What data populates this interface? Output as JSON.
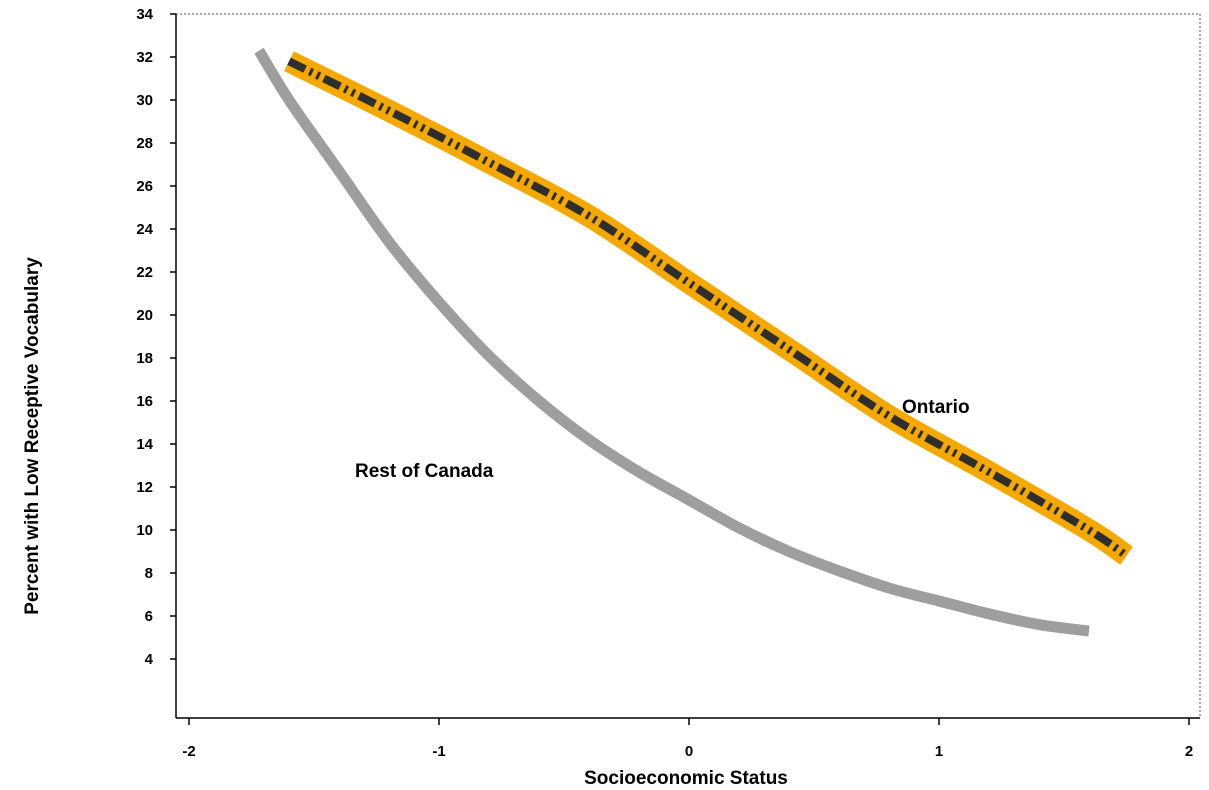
{
  "chart_data": {
    "type": "line",
    "xlabel": "Socioeconomic Status",
    "ylabel": "Percent with Low Receptive Vocabulary",
    "xlim": [
      -2,
      2
    ],
    "ylim": [
      2,
      34
    ],
    "x_ticks": [
      -2,
      -1,
      0,
      1,
      2
    ],
    "x_tick_labels": [
      "-2",
      "-1",
      "0",
      "1",
      "2"
    ],
    "y_ticks": [
      4,
      6,
      8,
      10,
      12,
      14,
      16,
      18,
      20,
      22,
      24,
      26,
      28,
      30,
      32,
      34
    ],
    "y_tick_labels": [
      "4",
      "6",
      "8",
      "10",
      "12",
      "14",
      "16",
      "18",
      "20",
      "22",
      "24",
      "26",
      "28",
      "30",
      "32",
      "34"
    ],
    "grid": false,
    "series": [
      {
        "name": "Ontario",
        "style": "dashed-on-gold",
        "colors": {
          "outer": "#f5a800",
          "inner": "#2e2e2e"
        },
        "x": [
          -1.6,
          -1.2,
          -0.8,
          -0.4,
          0,
          0.4,
          0.8,
          1.2,
          1.6,
          1.75
        ],
        "y": [
          31.8,
          29.5,
          27.1,
          24.6,
          21.5,
          18.4,
          15.3,
          12.7,
          10.0,
          8.8
        ]
      },
      {
        "name": "Rest of Canada",
        "style": "solid",
        "colors": {
          "line": "#9e9e9e"
        },
        "x": [
          -1.72,
          -1.6,
          -1.4,
          -1.2,
          -1.0,
          -0.8,
          -0.6,
          -0.4,
          -0.2,
          0,
          0.2,
          0.4,
          0.6,
          0.8,
          1.0,
          1.2,
          1.4,
          1.6
        ],
        "y": [
          32.3,
          30.0,
          26.7,
          23.4,
          20.6,
          18.1,
          16.0,
          14.2,
          12.7,
          11.4,
          10.1,
          9.0,
          8.1,
          7.3,
          6.7,
          6.1,
          5.6,
          5.3
        ]
      }
    ]
  }
}
